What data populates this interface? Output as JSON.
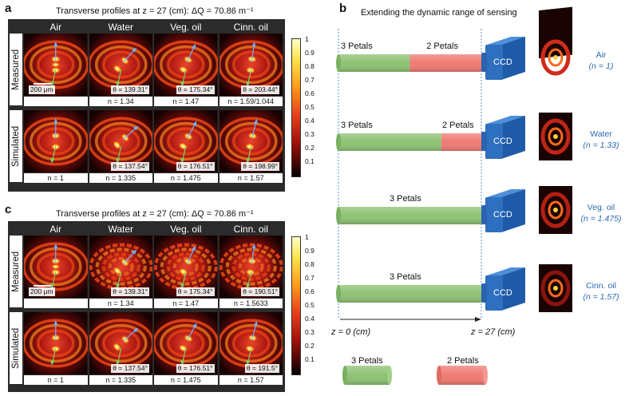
{
  "panel_a": {
    "letter": "a",
    "title": "Transverse profiles at z = 27 (cm): ΔQ = 70.86 m⁻¹",
    "columns": [
      "Air",
      "Water",
      "Veg. oil",
      "Cinn. oil"
    ],
    "rows": [
      "Measured",
      "Simulated"
    ],
    "scale_bar": "200 μm",
    "measured_theta": [
      "",
      "θ = 139.31°",
      "θ = 175.34°",
      "θ = 203.44°"
    ],
    "measured_n": [
      "",
      "n = 1.34",
      "n = 1.47",
      "n = 1.59/1.044"
    ],
    "simulated_theta": [
      "",
      "θ = 137.54°",
      "θ = 176.51°",
      "θ = 198.99°"
    ],
    "simulated_n": [
      "n = 1",
      "n = 1.335",
      "n = 1.475",
      "n = 1.57"
    ]
  },
  "panel_c": {
    "letter": "c",
    "title": "Transverse profiles at z = 27 (cm): ΔQ = 70.86 m⁻¹",
    "columns": [
      "Air",
      "Water",
      "Veg. oil",
      "Cinn. oil"
    ],
    "rows": [
      "Measured",
      "Simulated"
    ],
    "scale_bar": "200 μm",
    "measured_theta": [
      "",
      "θ = 139.31°",
      "θ = 175.34°",
      "θ = 190.51°"
    ],
    "measured_n": [
      "",
      "n = 1.34",
      "n = 1.47",
      "n = 1.5633"
    ],
    "simulated_theta": [
      "",
      "θ = 137.54°",
      "θ = 176.51°",
      "θ = 191.5°"
    ],
    "simulated_n": [
      "n = 1",
      "n = 1.335",
      "n = 1.475",
      "n = 1.57"
    ]
  },
  "colorbar_ticks": [
    "1",
    "0.9",
    "0.8",
    "0.7",
    "0.6",
    "0.5",
    "0.4",
    "0.3",
    "0.2",
    "0.1"
  ],
  "panel_b": {
    "letter": "b",
    "title": "Extending the dynamic range of sensing",
    "ccd_label": "CCD",
    "rows": [
      {
        "material": "Air",
        "n": "(n = 1)",
        "labels": [
          "3 Petals",
          "2 Petals"
        ],
        "split": 0.5
      },
      {
        "material": "Water",
        "n": "(n = 1.33)",
        "labels": [
          "3 Petals",
          "2 Petals"
        ],
        "split": 0.72
      },
      {
        "material": "Veg. oil",
        "n": "(n = 1.475)",
        "labels": [
          "3 Petals"
        ],
        "split": 1.0
      },
      {
        "material": "Cinn. oil",
        "n": "(n = 1.57)",
        "labels": [
          "3 Petals"
        ],
        "split": 1.0
      }
    ],
    "z_start": "z = 0 (cm)",
    "z_end": "z = 27 (cm)",
    "legend": [
      "3 Petals",
      "2 Petals"
    ]
  },
  "colors": {
    "green": "#8ec274",
    "red": "#ef7b74",
    "ccd_blue": "#2f6fbf",
    "label_blue": "#2a6ab0"
  }
}
